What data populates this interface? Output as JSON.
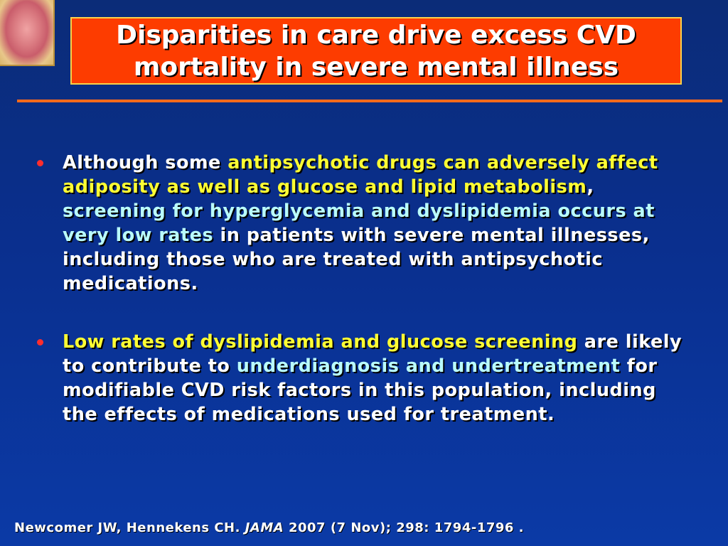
{
  "slide": {
    "title_line1": "Disparities in care drive excess CVD",
    "title_line2": "mortality in severe mental illness",
    "colors": {
      "title_bg": "#fd3c00",
      "rule": "#ff6a1a",
      "yellow_highlight": "#ffff33",
      "cyan_highlight": "#b9fbfb",
      "bullet_marker": "#ff2d2d"
    },
    "logo_icon": "heart-illustration-icon"
  },
  "bullets": [
    {
      "segments": [
        {
          "text": "Although some ",
          "style": "white"
        },
        {
          "text": "antipsychotic drugs can adversely affect adiposity as well as glucose and lipid metabolism",
          "style": "yellow"
        },
        {
          "text": ", ",
          "style": "white"
        },
        {
          "text": "screening for hyperglycemia and dyslipidemia occurs at very low rates",
          "style": "cyan"
        },
        {
          "text": " in patients with severe mental illnesses, including those who are treated with antipsychotic medications.",
          "style": "white"
        }
      ]
    },
    {
      "segments": [
        {
          "text": "Low rates of dyslipidemia and glucose screening",
          "style": "yellow"
        },
        {
          "text": " are likely to contribute to ",
          "style": "white"
        },
        {
          "text": "underdiagnosis and undertreatment",
          "style": "cyan"
        },
        {
          "text": " for modifiable CVD risk factors in this population, including the effects of medications used for treatment.",
          "style": "white"
        }
      ]
    }
  ],
  "citation": {
    "authors": "Newcomer JW, Hennekens CH. ",
    "journal": "JAMA",
    "details": " 2007 (7 Nov); 298: 1794-1796 ."
  }
}
